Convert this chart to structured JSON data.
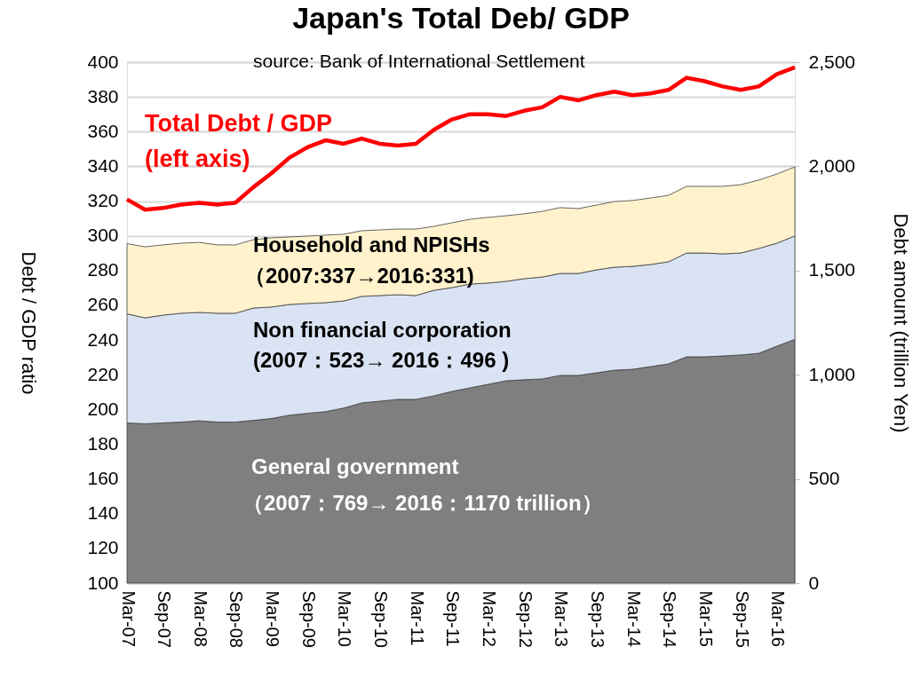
{
  "chart_data": {
    "type": "area",
    "title": "Japan's Total Deb/ GDP",
    "ylabel": "Debt / GDP ratio",
    "y2label": "Debt amount (trillion Yen)",
    "categories": [
      "Mar-07",
      null,
      "Sep-07",
      null,
      "Mar-08",
      null,
      "Sep-08",
      null,
      "Mar-09",
      null,
      "Sep-09",
      null,
      "Mar-10",
      null,
      "Sep-10",
      null,
      "Mar-11",
      null,
      "Sep-11",
      null,
      "Mar-12",
      null,
      "Sep-12",
      null,
      "Mar-13",
      null,
      "Sep-13",
      null,
      "Mar-14",
      null,
      "Sep-14",
      null,
      "Mar-15",
      null,
      "Sep-15",
      null,
      "Mar-16",
      null
    ],
    "stacked": true,
    "ylim": [
      100,
      400
    ],
    "yticks": [
      100,
      120,
      140,
      160,
      180,
      200,
      220,
      240,
      260,
      280,
      300,
      320,
      340,
      360,
      380,
      400
    ],
    "y2lim": [
      0,
      2500
    ],
    "y2ticks": [
      0,
      500,
      {
        "value": 1000,
        "label": "1,000"
      },
      {
        "value": 1500,
        "label": "1,500"
      },
      {
        "value": 2000,
        "label": "2,000"
      },
      {
        "value": 2500,
        "label": "2,500"
      }
    ],
    "grid": "y",
    "legend": false,
    "annotations": [
      "source: Bank of International Settlement",
      "（2007：769→ 2016：1170 trillion）",
      "(2007：523→ 2016：496 )",
      "（2007:337→2016:331)",
      "(left axis)"
    ],
    "series": [
      {
        "name": "General government",
        "color": "#7f7f7f",
        "axis": "y2",
        "values": [
          769,
          765,
          769,
          773,
          779,
          773,
          773,
          781,
          790,
          806,
          815,
          823,
          840,
          865,
          873,
          882,
          882,
          899,
          920,
          937,
          954,
          971,
          976,
          980,
          997,
          997,
          1009,
          1022,
          1026,
          1039,
          1052,
          1086,
          1086,
          1090,
          1095,
          1103,
          1137,
          1170
        ]
      },
      {
        "name": "Non financial corporation",
        "color": "#dae3f3",
        "axis": "y2",
        "values": [
          523,
          508,
          517,
          522,
          520,
          522,
          522,
          539,
          535,
          531,
          527,
          523,
          514,
          511,
          507,
          502,
          498,
          506,
          498,
          498,
          486,
          477,
          485,
          489,
          489,
          489,
          494,
          494,
          494,
          490,
          490,
          498,
          498,
          490,
          489,
          503,
          494,
          496
        ]
      },
      {
        "name": "Household and NPISHs",
        "color": "#fff2cc",
        "axis": "y2",
        "values": [
          337,
          341,
          337,
          336,
          336,
          328,
          328,
          328,
          332,
          324,
          323,
          324,
          320,
          315,
          315,
          315,
          319,
          307,
          311,
          311,
          315,
          315,
          311,
          315,
          316,
          311,
          311,
          315,
          316,
          319,
          319,
          320,
          320,
          324,
          328,
          328,
          332,
          331
        ]
      },
      {
        "name": "Total Debt / GDP",
        "type": "line",
        "color": "#ff0000",
        "values": [
          321,
          315,
          316,
          318,
          319,
          318,
          319,
          328,
          336,
          345,
          351,
          355,
          353,
          356,
          353,
          352,
          353,
          361,
          367,
          370,
          370,
          369,
          372,
          374,
          380,
          378,
          381,
          383,
          381,
          382,
          384,
          391,
          389,
          386,
          384,
          386,
          393,
          397
        ]
      }
    ]
  }
}
